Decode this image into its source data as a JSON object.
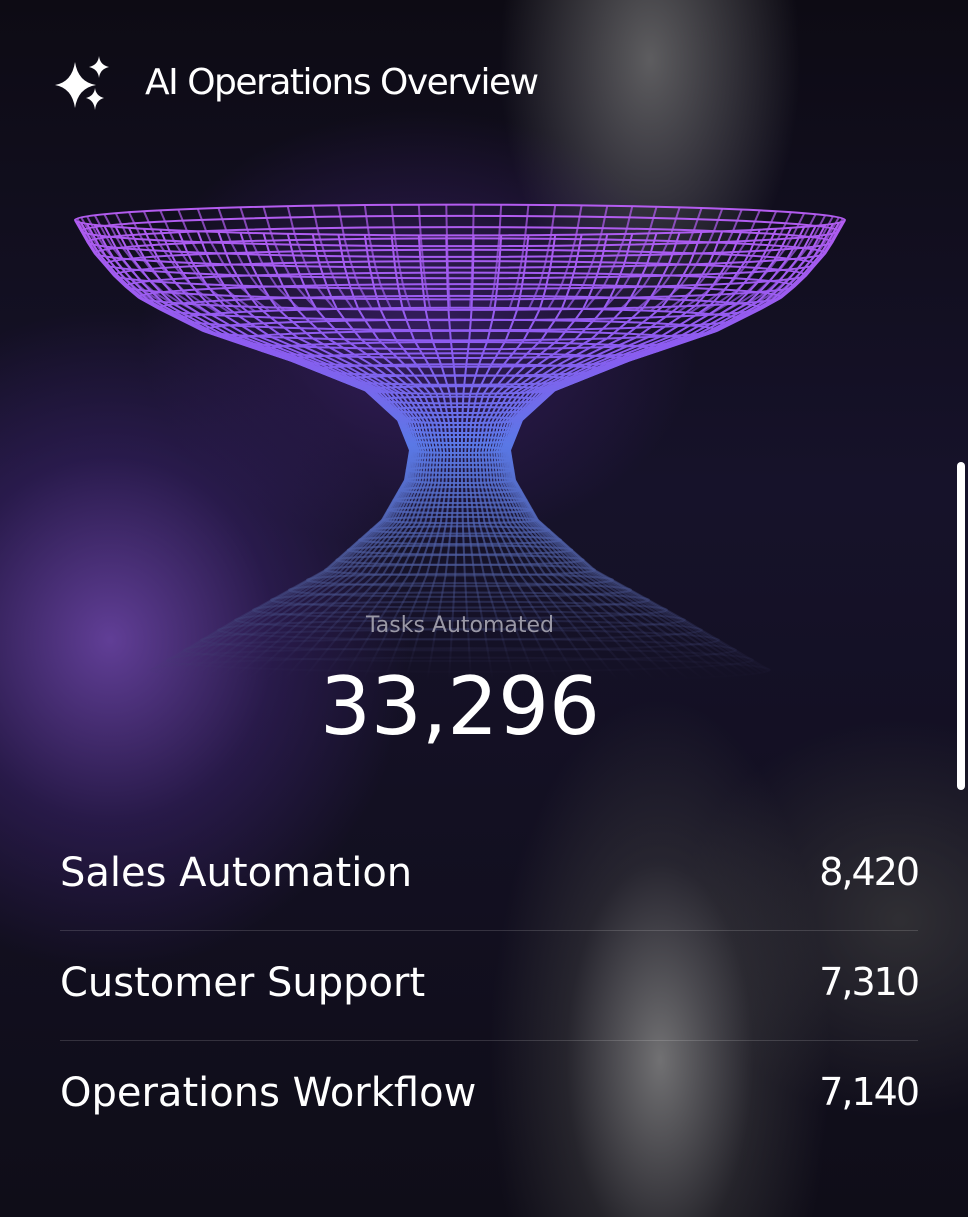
{
  "header": {
    "title": "AI Operations Overview"
  },
  "metric": {
    "label": "Tasks Automated",
    "value": "33,296"
  },
  "rows": [
    {
      "label": "Sales Automation",
      "value": "8,420"
    },
    {
      "label": "Customer Support",
      "value": "7,310"
    },
    {
      "label": "Operations Workflow",
      "value": "7,140"
    }
  ]
}
